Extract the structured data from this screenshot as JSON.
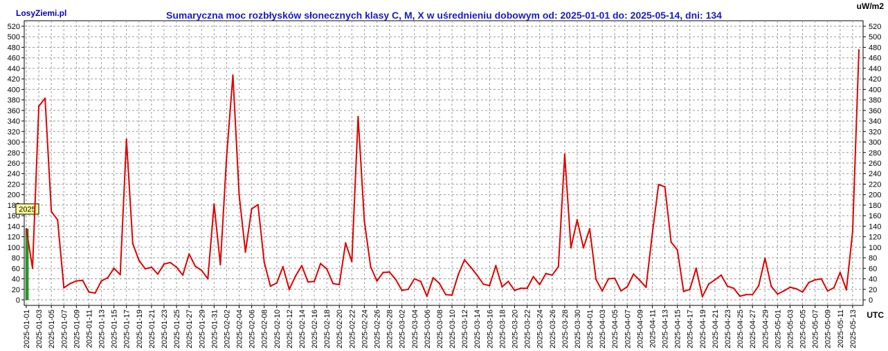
{
  "brand": "LosyZiemi.pl",
  "title": "Sumaryczna moc rozbłysków słonecznych klasy C, M, X w uśrednieniu dobowym od: 2025-01-01 do: 2025-05-14, dni: 134",
  "unit_label": "uW/m2",
  "utc_label": "UTC",
  "colors": {
    "line": "#e00000",
    "grid": "#9a9a9a",
    "year_bar": "#22a022",
    "year_badge_bg": "#ffff99",
    "title": "#1a1ad0",
    "brand": "#0000cc"
  },
  "chart_data": {
    "type": "line",
    "title": "Sumaryczna moc rozbłysków słonecznych klasy C, M, X w uśrednieniu dobowym od: 2025-01-01 do: 2025-05-14, dni: 134",
    "ylabel": "uW/m2",
    "xlabel": "UTC",
    "ylim": [
      0,
      520
    ],
    "y_ticks": [
      0,
      20,
      40,
      60,
      80,
      100,
      120,
      140,
      160,
      180,
      200,
      220,
      240,
      260,
      280,
      300,
      320,
      340,
      360,
      380,
      400,
      420,
      440,
      460,
      480,
      500,
      520
    ],
    "grid": true,
    "x_tick_labels": [
      "2025-01-01",
      "2025-01-03",
      "2025-01-05",
      "2025-01-07",
      "2025-01-09",
      "2025-01-11",
      "2025-01-13",
      "2025-01-15",
      "2025-01-17",
      "2025-01-19",
      "2025-01-21",
      "2025-01-23",
      "2025-01-25",
      "2025-01-27",
      "2025-01-29",
      "2025-01-31",
      "2025-02-02",
      "2025-02-04",
      "2025-02-06",
      "2025-02-08",
      "2025-02-10",
      "2025-02-12",
      "2025-02-14",
      "2025-02-16",
      "2025-02-18",
      "2025-02-20",
      "2025-02-22",
      "2025-02-24",
      "2025-02-26",
      "2025-02-28",
      "2025-03-02",
      "2025-03-04",
      "2025-03-06",
      "2025-03-08",
      "2025-03-10",
      "2025-03-12",
      "2025-03-14",
      "2025-03-16",
      "2025-03-18",
      "2025-03-20",
      "2025-03-22",
      "2025-03-24",
      "2025-03-26",
      "2025-03-28",
      "2025-03-30",
      "2025-04-01",
      "2025-04-03",
      "2025-04-05",
      "2025-04-07",
      "2025-04-09",
      "2025-04-11",
      "2025-04-13",
      "2025-04-15",
      "2025-04-17",
      "2025-04-19",
      "2025-04-21",
      "2025-04-23",
      "2025-04-25",
      "2025-04-27",
      "2025-04-29",
      "2025-05-01",
      "2025-05-03",
      "2025-05-05",
      "2025-05-07",
      "2025-05-09",
      "2025-05-11",
      "2025-05-13"
    ],
    "year_marker": {
      "label": "2025",
      "value": 135
    },
    "start_date": "2025-01-01",
    "values": [
      135,
      60,
      368,
      383,
      168,
      152,
      23,
      31,
      36,
      37,
      15,
      13,
      36,
      42,
      60,
      48,
      305,
      107,
      75,
      59,
      62,
      49,
      68,
      71,
      62,
      47,
      87,
      64,
      56,
      40,
      182,
      67,
      272,
      427,
      200,
      91,
      173,
      181,
      72,
      26,
      32,
      63,
      20,
      45,
      65,
      34,
      35,
      69,
      59,
      31,
      29,
      108,
      73,
      348,
      150,
      63,
      36,
      52,
      53,
      39,
      18,
      20,
      40,
      35,
      7,
      42,
      31,
      10,
      9,
      48,
      76,
      62,
      47,
      30,
      27,
      65,
      25,
      35,
      18,
      22,
      22,
      44,
      29,
      50,
      47,
      63,
      277,
      99,
      152,
      99,
      135,
      39,
      17,
      40,
      41,
      17,
      25,
      49,
      37,
      24,
      126,
      219,
      215,
      110,
      95,
      16,
      20,
      60,
      6,
      30,
      38,
      47,
      26,
      22,
      7,
      10,
      10,
      27,
      79,
      26,
      11,
      17,
      24,
      21,
      15,
      33,
      38,
      40,
      17,
      23,
      52,
      19,
      130,
      475
    ]
  }
}
